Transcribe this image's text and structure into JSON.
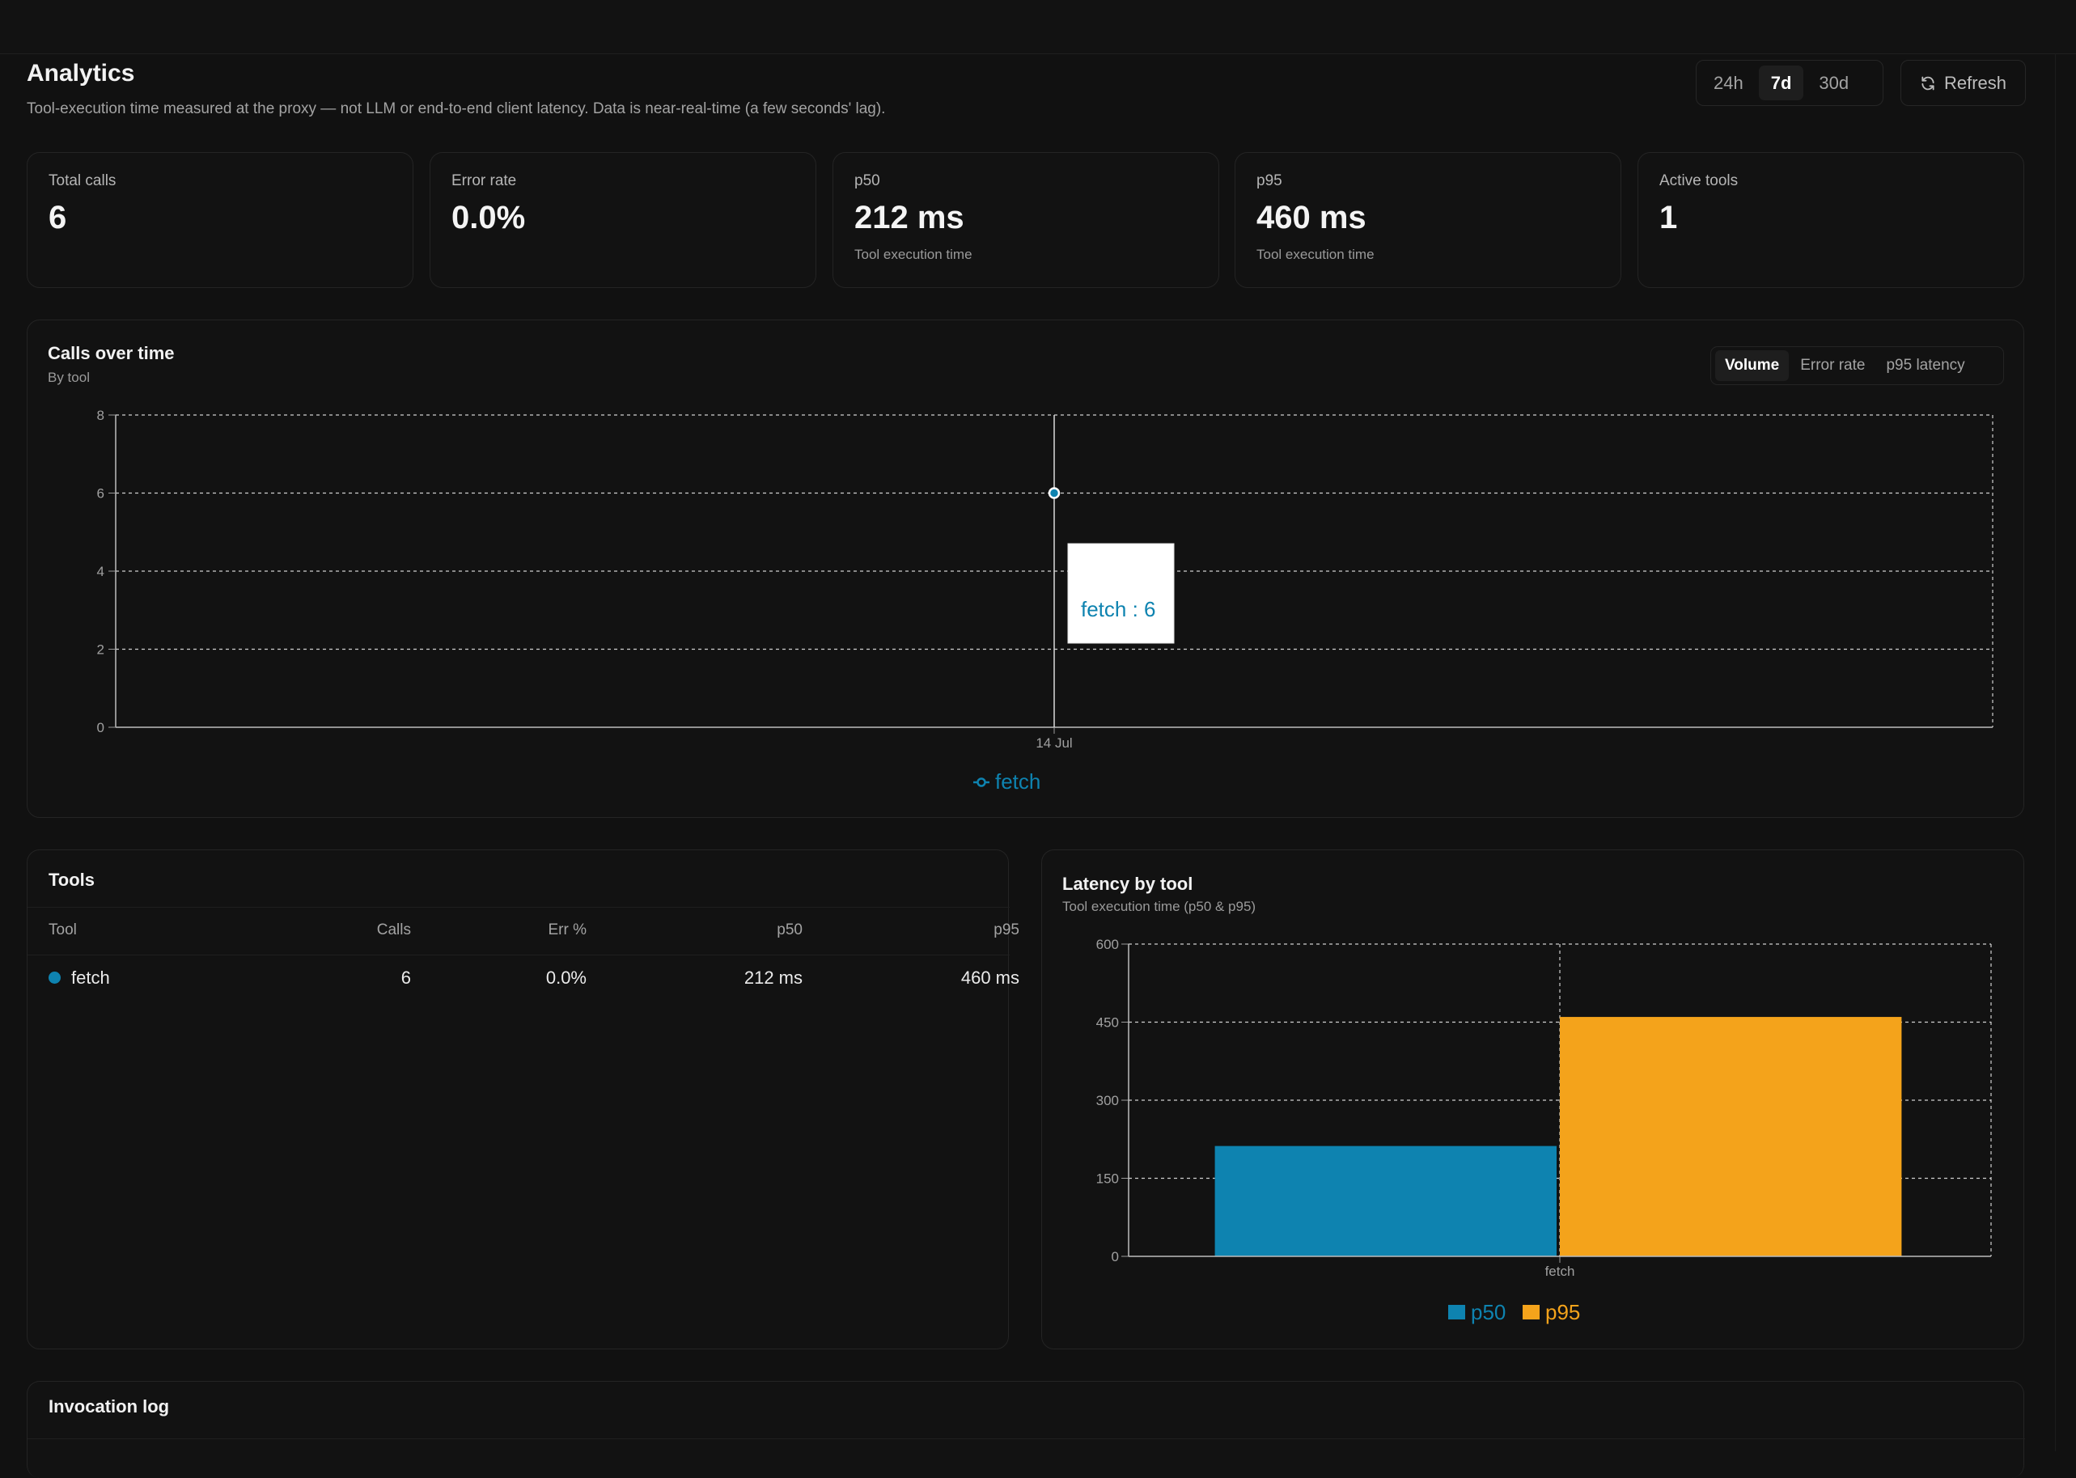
{
  "header": {
    "title": "Analytics",
    "subtitle": "Tool-execution time measured at the proxy — not LLM or end-to-end client latency. Data is near-real-time (a few seconds' lag)."
  },
  "time_range": {
    "options": [
      "24h",
      "7d",
      "30d"
    ],
    "selected": "7d"
  },
  "refresh_label": "Refresh",
  "stats": [
    {
      "label": "Total calls",
      "value": "6",
      "sub": ""
    },
    {
      "label": "Error rate",
      "value": "0.0%",
      "sub": ""
    },
    {
      "label": "p50",
      "value": "212 ms",
      "sub": "Tool execution time"
    },
    {
      "label": "p95",
      "value": "460 ms",
      "sub": "Tool execution time"
    },
    {
      "label": "Active tools",
      "value": "1",
      "sub": ""
    }
  ],
  "calls_chart": {
    "title": "Calls over time",
    "subtitle": "By tool",
    "metric_options": [
      "Volume",
      "Error rate",
      "p95 latency"
    ],
    "selected_metric": "Volume",
    "tooltip": "fetch : 6",
    "colors": {
      "fetch": "#0e83b0"
    }
  },
  "tools": {
    "title": "Tools",
    "columns": [
      "Tool",
      "Calls",
      "Err %",
      "p50",
      "p95"
    ],
    "rows": [
      {
        "name": "fetch",
        "calls": "6",
        "err": "0.0%",
        "p50": "212 ms",
        "p95": "460 ms",
        "color": "#0e83b0"
      }
    ]
  },
  "latency_chart": {
    "title": "Latency by tool",
    "subtitle": "Tool execution time (p50 & p95)",
    "colors": {
      "p50": "#0e83b0",
      "p95": "#f4a31b"
    }
  },
  "invocation_log": {
    "title": "Invocation log"
  },
  "chart_data": [
    {
      "type": "line",
      "title": "Calls over time",
      "subtitle": "By tool",
      "x": [
        "14 Jul"
      ],
      "series": [
        {
          "name": "fetch",
          "values": [
            6
          ]
        }
      ],
      "ylim": [
        0,
        8
      ],
      "yticks": [
        0,
        2,
        4,
        6,
        8
      ],
      "grid": true,
      "legend": "bottom"
    },
    {
      "type": "bar",
      "title": "Latency by tool",
      "subtitle": "Tool execution time (p50 & p95)",
      "categories": [
        "fetch"
      ],
      "series": [
        {
          "name": "p50",
          "values": [
            212
          ]
        },
        {
          "name": "p95",
          "values": [
            460
          ]
        }
      ],
      "ylim": [
        0,
        600
      ],
      "yticks": [
        0,
        150,
        300,
        450,
        600
      ],
      "grid": true,
      "legend": "bottom"
    }
  ]
}
